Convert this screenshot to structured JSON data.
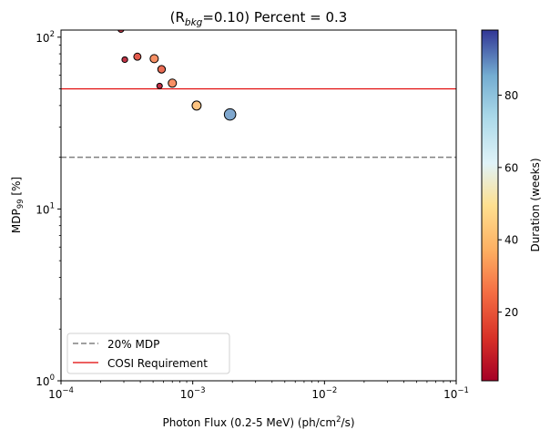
{
  "chart_data": {
    "type": "scatter",
    "title": {
      "prefix": "(R",
      "subscript": "bkg",
      "suffix": "=0.10) Percent = 0.3"
    },
    "xlabel": {
      "prefix": "Photon Flux (0.2-5 MeV) (ph/cm",
      "superscript": "2",
      "suffix": "/s)"
    },
    "ylabel": {
      "prefix": "MDP",
      "subscript": "99",
      "suffix": " [%]"
    },
    "xscale": "log",
    "yscale": "log",
    "xlim": [
      0.0001,
      0.1
    ],
    "ylim": [
      1,
      110
    ],
    "x_ticks": [
      {
        "value": 0.0001,
        "base": "10",
        "exp": "−4"
      },
      {
        "value": 0.001,
        "base": "10",
        "exp": "−3"
      },
      {
        "value": 0.01,
        "base": "10",
        "exp": "−2"
      },
      {
        "value": 0.1,
        "base": "10",
        "exp": "−1"
      }
    ],
    "y_ticks": [
      {
        "value": 1,
        "base": "10",
        "exp": "0"
      },
      {
        "value": 10,
        "base": "10",
        "exp": "1"
      },
      {
        "value": 100,
        "base": "10",
        "exp": "2"
      }
    ],
    "reference_lines": [
      {
        "label": "20% MDP",
        "y": 20,
        "color": "#808080",
        "style": "dashed"
      },
      {
        "label": "COSI Requirement",
        "y": 50,
        "color": "#e00000",
        "style": "solid"
      }
    ],
    "points": [
      {
        "x": 0.000285,
        "y": 111,
        "duration": 6
      },
      {
        "x": 0.000305,
        "y": 74,
        "duration": 5
      },
      {
        "x": 0.00038,
        "y": 77,
        "duration": 16
      },
      {
        "x": 0.00051,
        "y": 75,
        "duration": 28
      },
      {
        "x": 0.00056,
        "y": 52,
        "duration": 4
      },
      {
        "x": 0.00058,
        "y": 65,
        "duration": 20
      },
      {
        "x": 0.0007,
        "y": 54,
        "duration": 28
      },
      {
        "x": 0.00107,
        "y": 40,
        "duration": 40
      },
      {
        "x": 0.00192,
        "y": 35.5,
        "duration": 88
      }
    ],
    "colorbar": {
      "label": "Duration (weeks)",
      "range": [
        1,
        98
      ],
      "ticks": [
        "20",
        "40",
        "60",
        "80"
      ],
      "colormap": "RdYlBu"
    },
    "legend": {
      "placement": "lower-left",
      "entries": [
        "20% MDP",
        "COSI Requirement"
      ]
    },
    "grid": false
  }
}
